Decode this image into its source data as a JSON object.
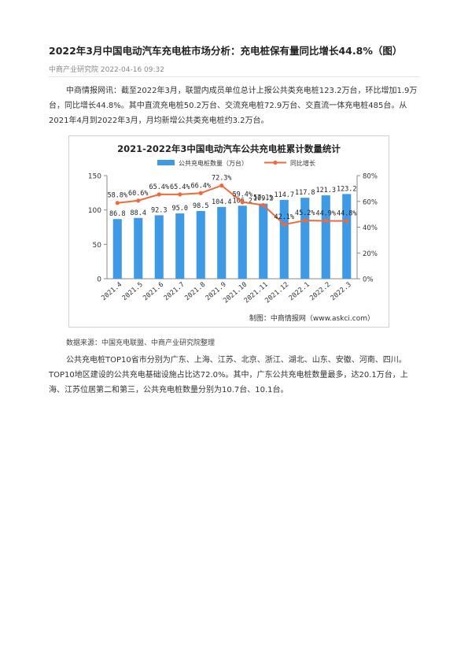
{
  "article": {
    "title": "2022年3月中国电动汽车充电桩市场分析：充电桩保有量同比增长44.8%（图）",
    "meta": "中商产业研究院 2022-04-16 09:32",
    "paragraph1": "中商情报网讯：截至2022年3月，联盟内成员单位总计上报公共类充电桩123.2万台，环比增加1.9万台，同比增长44.8%。其中直流充电桩50.2万台、交流充电桩72.9万台、交直流一体充电桩485台。从2021年4月到2022年3月，月均新增公共类充电桩约3.2万台。",
    "source": "数据来源：中国充电联盟、中商产业研究院整理",
    "paragraph2": "公共充电桩TOP10省市分别为广东、上海、江苏、北京、浙江、湖北、山东、安徽、河南、四川。TOP10地区建设的公共充电基础设施占比达72.0%。其中，广东公共充电桩数量最多，达20.1万台，上海、江苏位居第二和第三，公共充电桩数量分别为10.7台、10.1台。"
  },
  "chart_data": {
    "type": "bar",
    "title": "2021-2022年3中国电动汽车公共充电桩累计数量统计",
    "credit": "制图：中商情报网（www.askci.com）",
    "categories": [
      "2021.4",
      "2021.5",
      "2021.6",
      "2021.7",
      "2021.8",
      "2021.9",
      "2021.10",
      "2021.11",
      "2021.12",
      "2022.1",
      "2022.2",
      "2022.3"
    ],
    "series": [
      {
        "name": "公共充电桩数量（万台）",
        "type": "bar",
        "axis": "left",
        "values": [
          86.8,
          88.4,
          92.3,
          95.0,
          98.5,
          104.4,
          106.2,
          109.2,
          114.7,
          117.8,
          121.3,
          123.2
        ],
        "labels": [
          "86.8",
          "88.4",
          "92.3",
          "95.0",
          "98.5",
          "104.4",
          "106.2",
          "109.2",
          "114.7",
          "117.8",
          "121.3",
          "123.2"
        ]
      },
      {
        "name": "同比增长",
        "type": "line",
        "axis": "right",
        "values": [
          58.8,
          60.6,
          65.4,
          65.4,
          66.4,
          72.3,
          59.4,
          57.1,
          42.1,
          45.2,
          44.9,
          44.8
        ],
        "labels": [
          "58.8%",
          "60.6%",
          "65.4%",
          "65.4%",
          "66.4%",
          "72.3%",
          "59.4%",
          "57.1%",
          "42.1%",
          "45.2%",
          "44.9%",
          "44.8%"
        ]
      }
    ],
    "y_left": {
      "min": 0,
      "max": 150,
      "ticks": [
        "0",
        "50",
        "100",
        "150"
      ]
    },
    "y_right": {
      "min": 0,
      "max": 80,
      "ticks": [
        "0%",
        "20%",
        "40%",
        "60%",
        "80%"
      ]
    },
    "legend_position": "top-center",
    "grid": false,
    "colors": {
      "bar": "#3f9ae6",
      "line": "#ef6a3a",
      "axis": "#888888"
    }
  }
}
